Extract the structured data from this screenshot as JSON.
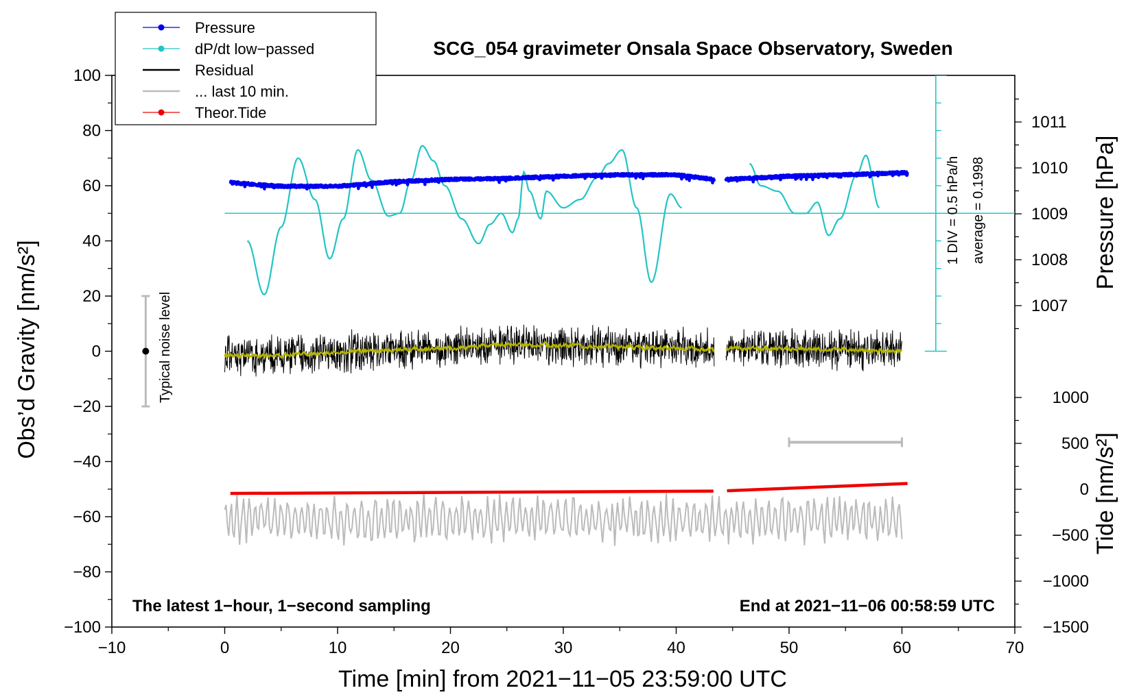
{
  "chart_data": {
    "type": "line",
    "title": "SCG_054 gravimeter Onsala Space Observatory, Sweden",
    "xlabel": "Time [min] from 2021−11−05 23:59:00 UTC",
    "ylabel_left": "Obs’d Gravity [nm/s²]",
    "ylabel_right_pressure": "Pressure [hPa]",
    "ylabel_right_tide": "Tide [nm/s²]",
    "xlim": [
      -10,
      70
    ],
    "ylim_left": [
      -100,
      100
    ],
    "pressure_range": [
      1006,
      1012
    ],
    "tide_range": [
      -1500,
      1500
    ],
    "x_ticks": [
      "−10",
      "0",
      "10",
      "20",
      "30",
      "40",
      "50",
      "60",
      "70"
    ],
    "x_tick_values": [
      -10,
      0,
      10,
      20,
      30,
      40,
      50,
      60,
      70
    ],
    "y_ticks_left": [
      "100",
      "80",
      "60",
      "40",
      "20",
      "0",
      "−20",
      "−40",
      "−60",
      "−80",
      "−100"
    ],
    "y_tick_values_left": [
      100,
      80,
      60,
      40,
      20,
      0,
      -20,
      -40,
      -60,
      -80,
      -100
    ],
    "pressure_ticks": [
      "1011",
      "1010",
      "1009",
      "1008",
      "1007"
    ],
    "pressure_tick_values": [
      1011,
      1010,
      1009,
      1008,
      1007
    ],
    "tide_ticks": [
      "1000",
      "500",
      "0",
      "−500",
      "−1000",
      "−1500"
    ],
    "tide_tick_values": [
      1000,
      500,
      0,
      -500,
      -1000,
      -1500
    ],
    "legend": [
      {
        "label": "Pressure",
        "color": "#0000ee",
        "marker": "dot"
      },
      {
        "label": "dP/dt low−passed",
        "color": "#22c4c4",
        "marker": "dot"
      },
      {
        "label": "Residual",
        "color": "#000000",
        "marker": "line"
      },
      {
        "label": "... last 10 min.",
        "color": "#bbbbbb",
        "marker": "line"
      },
      {
        "label": "Theor.Tide",
        "color": "#ee0000",
        "marker": "dot"
      }
    ],
    "legend_position": "top-left",
    "annotations": {
      "noise_label": "Typical noise level",
      "noise_range": [
        -20,
        20
      ],
      "noise_x": -7,
      "div_label": "1 DIV = 0.5 hPa/h",
      "average_label": "average = 0.1998",
      "dpdt_reference_y": 50,
      "div_scale_x": 63,
      "div_scale_range": [
        0,
        100
      ],
      "bottom_left_note": "The latest 1−hour, 1−second sampling",
      "bottom_right_note": "End at 2021−11−06 00:58:59 UTC",
      "last10_bar": [
        50,
        60
      ],
      "last10_bar_y": -33
    },
    "data_gap_minutes": [
      43.4,
      44.4
    ],
    "series": [
      {
        "name": "Pressure",
        "unit": "hPa",
        "x": [
          0.5,
          5,
          10,
          15,
          20,
          25,
          30,
          35,
          40,
          43.3,
          44.5,
          50,
          55,
          60.5
        ],
        "values": [
          1009.68,
          1009.6,
          1009.6,
          1009.7,
          1009.75,
          1009.77,
          1009.82,
          1009.85,
          1009.85,
          1009.75,
          1009.75,
          1009.82,
          1009.85,
          1009.9
        ]
      },
      {
        "name": "dP/dt low−passed",
        "unit": "nm/s² scale",
        "x": [
          2,
          3.5,
          5,
          6.5,
          8,
          9.3,
          10.5,
          11.8,
          13,
          14.5,
          15.5,
          16.5,
          17.5,
          18.5,
          19.5,
          21,
          22.5,
          23.5,
          24.5,
          25.5,
          26,
          26.5,
          27,
          28,
          28.5,
          30,
          31.5,
          33,
          34,
          35.2,
          36.5,
          37.8,
          39.5,
          40.5
        ],
        "values": [
          40,
          20.5,
          45,
          70,
          55,
          33.5,
          48,
          73,
          62,
          49,
          50,
          62,
          74.5,
          69,
          60,
          48,
          39,
          46,
          50,
          43,
          48,
          65,
          58,
          48,
          58,
          52,
          55,
          63,
          68,
          73,
          52,
          25,
          57,
          52
        ]
      },
      {
        "name": "dP/dt low−passed (segment 2)",
        "unit": "nm/s² scale",
        "x": [
          46.5,
          47.5,
          49,
          50.5,
          51.5,
          52.5,
          53.5,
          54.5,
          56,
          56.8,
          58
        ],
        "values": [
          68,
          60,
          58,
          50,
          50,
          54,
          42,
          48,
          64,
          71,
          52
        ]
      },
      {
        "name": "Residual",
        "unit": "nm/s²",
        "noise_amplitude": 7,
        "x": [
          0,
          5,
          10,
          15,
          20,
          25,
          30,
          35,
          40,
          43.3,
          44.5,
          50,
          55,
          60
        ],
        "values": [
          -1.5,
          -1.5,
          -0.5,
          0.5,
          1,
          2.5,
          2,
          1.5,
          1,
          0.5,
          1,
          1,
          0.5,
          0
        ]
      },
      {
        "name": "... last 10 min.",
        "unit": "nm/s²",
        "noise_amplitude": 8,
        "x": [
          0,
          60
        ],
        "values": [
          -61,
          -61
        ]
      },
      {
        "name": "Theor.Tide",
        "unit": "nm/s²",
        "x": [
          0.5,
          43.3,
          44.5,
          60.5
        ],
        "values": [
          -45,
          -20,
          -16,
          63
        ]
      }
    ]
  }
}
